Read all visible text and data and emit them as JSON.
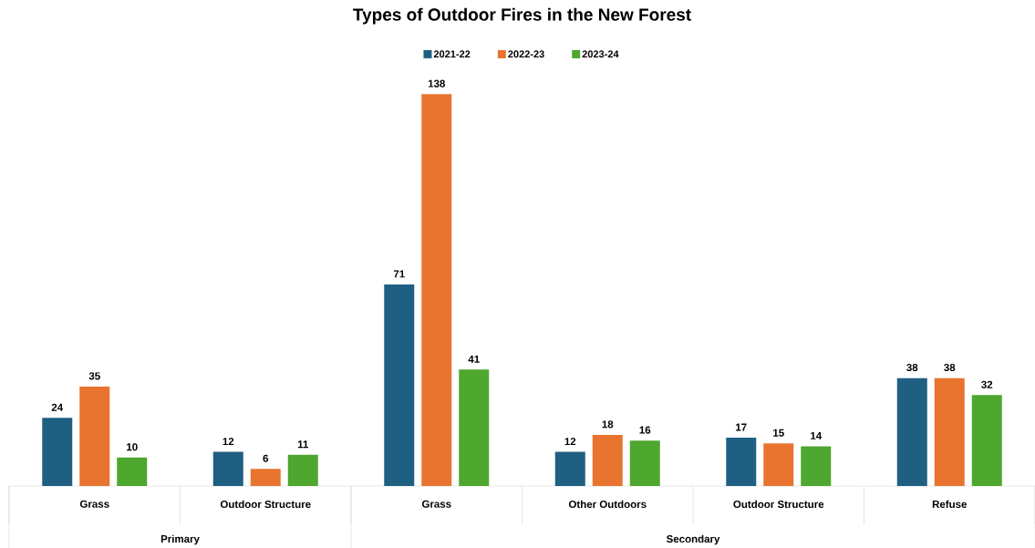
{
  "chart_data": {
    "type": "bar",
    "title": "Types of Outdoor Fires in the New Forest",
    "categories": [
      "Grass",
      "Outdoor Structure",
      "Grass",
      "Other Outdoors",
      "Outdoor Structure",
      "Refuse"
    ],
    "series": [
      {
        "name": "2021-22",
        "color": "#1f5f82",
        "values": [
          24,
          12,
          71,
          12,
          17,
          38
        ]
      },
      {
        "name": "2022-23",
        "color": "#e87430",
        "values": [
          35,
          6,
          138,
          18,
          15,
          38
        ]
      },
      {
        "name": "2023-24",
        "color": "#4ea72e",
        "values": [
          10,
          11,
          41,
          16,
          14,
          32
        ]
      }
    ],
    "tick_labels": "x",
    "data_labels": true,
    "legend": "top",
    "annotations": [
      "Primary",
      "Secondary"
    ]
  }
}
